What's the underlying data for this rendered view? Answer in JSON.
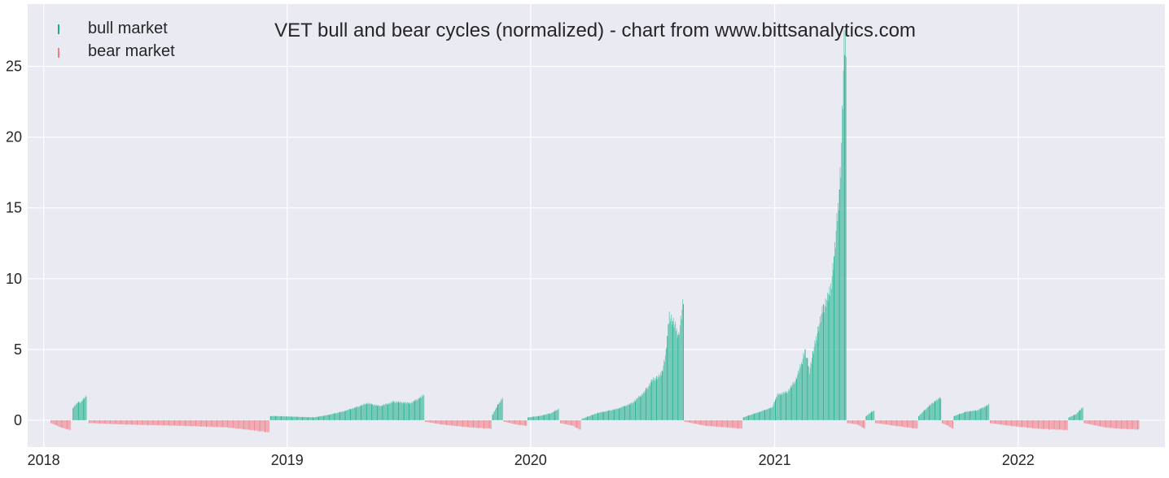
{
  "chart_data": {
    "type": "bar",
    "title": "VET bull and bear cycles (normalized)  - chart from www.bittsanalytics.com",
    "xlabel": "",
    "ylabel": "",
    "x_axis": {
      "type": "date",
      "range": [
        "2017-12-08",
        "2022-08-09"
      ],
      "tick_labels": [
        "2018",
        "2019",
        "2020",
        "2021",
        "2022"
      ],
      "tick_dates": [
        "2018-01-01",
        "2019-01-01",
        "2020-01-01",
        "2021-01-01",
        "2022-01-01"
      ]
    },
    "y_axis": {
      "range": [
        -1.9,
        29.4
      ],
      "ticks": [
        0,
        5,
        10,
        15,
        20,
        25
      ],
      "tick_labels": [
        "0",
        "5",
        "10",
        "15",
        "20",
        "25"
      ]
    },
    "grid": true,
    "legend": {
      "placement": "top-left"
    },
    "series": [
      {
        "name": "bull market",
        "color": "#1aaf8b",
        "segments": [
          {
            "start": "2018-02-14",
            "end": "2018-03-06",
            "points": [
              [
                "2018-02-14",
                0.9
              ],
              [
                "2018-02-20",
                1.2
              ],
              [
                "2018-02-26",
                1.3
              ],
              [
                "2018-03-02",
                1.5
              ],
              [
                "2018-03-06",
                1.7
              ]
            ]
          },
          {
            "start": "2018-12-07",
            "end": "2019-07-25",
            "points": [
              [
                "2018-12-07",
                0.3
              ],
              [
                "2019-01-10",
                0.25
              ],
              [
                "2019-02-10",
                0.2
              ],
              [
                "2019-03-01",
                0.35
              ],
              [
                "2019-03-25",
                0.6
              ],
              [
                "2019-04-20",
                1.0
              ],
              [
                "2019-05-01",
                1.2
              ],
              [
                "2019-05-20",
                1.0
              ],
              [
                "2019-06-10",
                1.3
              ],
              [
                "2019-07-05",
                1.2
              ],
              [
                "2019-07-25",
                1.75
              ]
            ]
          },
          {
            "start": "2019-11-05",
            "end": "2019-11-20",
            "points": [
              [
                "2019-11-05",
                0.4
              ],
              [
                "2019-11-12",
                1.0
              ],
              [
                "2019-11-20",
                1.6
              ]
            ]
          },
          {
            "start": "2019-12-28",
            "end": "2020-02-12",
            "points": [
              [
                "2019-12-28",
                0.2
              ],
              [
                "2020-01-15",
                0.3
              ],
              [
                "2020-02-01",
                0.5
              ],
              [
                "2020-02-12",
                0.8
              ]
            ]
          },
          {
            "start": "2020-03-18",
            "end": "2020-08-17",
            "points": [
              [
                "2020-03-18",
                0.1
              ],
              [
                "2020-04-10",
                0.5
              ],
              [
                "2020-05-10",
                0.8
              ],
              [
                "2020-06-01",
                1.2
              ],
              [
                "2020-06-20",
                2.0
              ],
              [
                "2020-07-01",
                2.8
              ],
              [
                "2020-07-15",
                3.2
              ],
              [
                "2020-07-22",
                4.8
              ],
              [
                "2020-07-27",
                7.5
              ],
              [
                "2020-08-03",
                6.8
              ],
              [
                "2020-08-10",
                6.0
              ],
              [
                "2020-08-17",
                8.4
              ]
            ]
          },
          {
            "start": "2020-11-15",
            "end": "2021-04-18",
            "points": [
              [
                "2020-11-15",
                0.2
              ],
              [
                "2020-12-10",
                0.6
              ],
              [
                "2020-12-28",
                0.9
              ],
              [
                "2021-01-05",
                1.8
              ],
              [
                "2021-01-20",
                2.0
              ],
              [
                "2021-02-01",
                2.8
              ],
              [
                "2021-02-10",
                4.0
              ],
              [
                "2021-02-15",
                5.0
              ],
              [
                "2021-02-22",
                3.5
              ],
              [
                "2021-03-05",
                6.0
              ],
              [
                "2021-03-15",
                8.0
              ],
              [
                "2021-03-25",
                9.0
              ],
              [
                "2021-04-01",
                12.0
              ],
              [
                "2021-04-06",
                15.0
              ],
              [
                "2021-04-10",
                18.0
              ],
              [
                "2021-04-15",
                26.0
              ],
              [
                "2021-04-18",
                27.3
              ]
            ]
          },
          {
            "start": "2021-05-18",
            "end": "2021-05-30",
            "points": [
              [
                "2021-05-18",
                0.3
              ],
              [
                "2021-05-24",
                0.5
              ],
              [
                "2021-05-30",
                0.7
              ]
            ]
          },
          {
            "start": "2021-08-05",
            "end": "2021-09-07",
            "points": [
              [
                "2021-08-05",
                0.3
              ],
              [
                "2021-08-18",
                0.9
              ],
              [
                "2021-08-28",
                1.3
              ],
              [
                "2021-09-07",
                1.6
              ]
            ]
          },
          {
            "start": "2021-09-27",
            "end": "2021-11-18",
            "points": [
              [
                "2021-09-27",
                0.3
              ],
              [
                "2021-10-15",
                0.6
              ],
              [
                "2021-11-01",
                0.7
              ],
              [
                "2021-11-18",
                1.1
              ]
            ]
          },
          {
            "start": "2022-03-18",
            "end": "2022-04-08",
            "points": [
              [
                "2022-03-18",
                0.2
              ],
              [
                "2022-03-28",
                0.4
              ],
              [
                "2022-04-08",
                0.9
              ]
            ]
          }
        ]
      },
      {
        "name": "bear market",
        "color": "#f47a85",
        "segments": [
          {
            "start": "2018-01-12",
            "end": "2018-02-10",
            "points": [
              [
                "2018-01-12",
                -0.2
              ],
              [
                "2018-01-26",
                -0.5
              ],
              [
                "2018-02-10",
                -0.7
              ]
            ]
          },
          {
            "start": "2018-03-10",
            "end": "2018-12-05",
            "points": [
              [
                "2018-03-10",
                -0.2
              ],
              [
                "2018-05-01",
                -0.3
              ],
              [
                "2018-08-01",
                -0.4
              ],
              [
                "2018-10-01",
                -0.5
              ],
              [
                "2018-11-10",
                -0.7
              ],
              [
                "2018-12-05",
                -0.85
              ]
            ]
          },
          {
            "start": "2019-07-27",
            "end": "2019-11-03",
            "points": [
              [
                "2019-07-27",
                -0.1
              ],
              [
                "2019-08-20",
                -0.3
              ],
              [
                "2019-10-01",
                -0.5
              ],
              [
                "2019-11-03",
                -0.6
              ]
            ]
          },
          {
            "start": "2019-11-22",
            "end": "2019-12-26",
            "points": [
              [
                "2019-11-22",
                -0.1
              ],
              [
                "2019-12-10",
                -0.3
              ],
              [
                "2019-12-26",
                -0.4
              ]
            ]
          },
          {
            "start": "2020-02-15",
            "end": "2020-03-16",
            "points": [
              [
                "2020-02-15",
                -0.2
              ],
              [
                "2020-03-05",
                -0.4
              ],
              [
                "2020-03-16",
                -0.7
              ]
            ]
          },
          {
            "start": "2020-08-19",
            "end": "2020-11-13",
            "points": [
              [
                "2020-08-19",
                -0.1
              ],
              [
                "2020-09-20",
                -0.4
              ],
              [
                "2020-10-20",
                -0.5
              ],
              [
                "2020-11-13",
                -0.6
              ]
            ]
          },
          {
            "start": "2021-04-20",
            "end": "2021-05-16",
            "points": [
              [
                "2021-04-20",
                -0.2
              ],
              [
                "2021-05-05",
                -0.3
              ],
              [
                "2021-05-16",
                -0.6
              ]
            ]
          },
          {
            "start": "2021-06-01",
            "end": "2021-08-03",
            "points": [
              [
                "2021-06-01",
                -0.2
              ],
              [
                "2021-07-01",
                -0.4
              ],
              [
                "2021-08-03",
                -0.6
              ]
            ]
          },
          {
            "start": "2021-09-09",
            "end": "2021-09-25",
            "points": [
              [
                "2021-09-09",
                -0.2
              ],
              [
                "2021-09-18",
                -0.4
              ],
              [
                "2021-09-25",
                -0.6
              ]
            ]
          },
          {
            "start": "2021-11-20",
            "end": "2022-03-16",
            "points": [
              [
                "2021-11-20",
                -0.2
              ],
              [
                "2021-12-20",
                -0.4
              ],
              [
                "2022-02-01",
                -0.6
              ],
              [
                "2022-03-16",
                -0.7
              ]
            ]
          },
          {
            "start": "2022-04-10",
            "end": "2022-07-01",
            "points": [
              [
                "2022-04-10",
                -0.2
              ],
              [
                "2022-05-10",
                -0.5
              ],
              [
                "2022-06-01",
                -0.6
              ],
              [
                "2022-07-01",
                -0.65
              ]
            ]
          }
        ]
      }
    ]
  }
}
